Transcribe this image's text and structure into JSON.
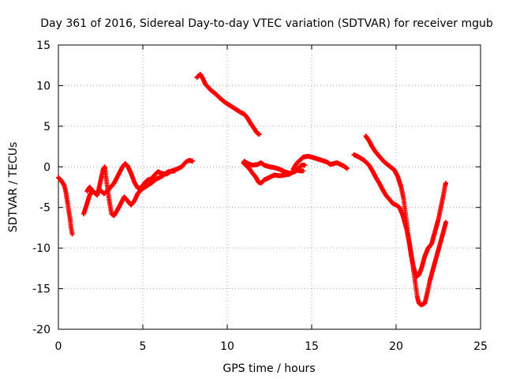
{
  "chart_data": {
    "type": "scatter",
    "title": "Day 361 of 2016, Sidereal Day-to-day VTEC variation (SDTVAR) for receiver mgub",
    "xlabel": "GPS time / hours",
    "ylabel": "SDTVAR / TECUs",
    "xlim": [
      0,
      25
    ],
    "ylim": [
      -20,
      15
    ],
    "x_ticks": [
      0,
      5,
      10,
      15,
      20,
      25
    ],
    "y_ticks": [
      -20,
      -15,
      -10,
      -5,
      0,
      5,
      10,
      15
    ],
    "x_tick_labels": [
      "0",
      "5",
      "10",
      "15",
      "20",
      "25"
    ],
    "y_tick_labels": [
      "-20",
      "-15",
      "-10",
      "-5",
      "0",
      "5",
      "10",
      "15"
    ],
    "grid": true,
    "marker": "+",
    "color": "#ff0000",
    "series": [
      {
        "points": [
          [
            0.0,
            -1.3
          ],
          [
            0.2,
            -1.8
          ],
          [
            0.35,
            -2.3
          ],
          [
            0.45,
            -3.2
          ],
          [
            0.55,
            -4.5
          ],
          [
            0.62,
            -5.5
          ],
          [
            0.7,
            -6.5
          ],
          [
            0.75,
            -7.5
          ],
          [
            0.82,
            -8.3
          ]
        ]
      },
      {
        "points": [
          [
            1.5,
            -5.8
          ],
          [
            1.7,
            -4.5
          ],
          [
            1.85,
            -3.5
          ],
          [
            2.0,
            -3.0
          ],
          [
            2.2,
            -3.3
          ],
          [
            2.5,
            -2.9
          ],
          [
            2.7,
            -3.3
          ],
          [
            2.9,
            -3.0
          ],
          [
            3.1,
            -2.5
          ],
          [
            3.3,
            -2.0
          ],
          [
            3.55,
            -1.0
          ],
          [
            3.8,
            0.0
          ],
          [
            3.95,
            0.4
          ],
          [
            4.1,
            0.1
          ],
          [
            4.3,
            -0.8
          ],
          [
            4.5,
            -1.9
          ],
          [
            4.7,
            -2.6
          ],
          [
            4.9,
            -2.6
          ],
          [
            5.1,
            -2.0
          ],
          [
            5.3,
            -1.6
          ],
          [
            5.5,
            -1.5
          ],
          [
            5.7,
            -1.0
          ],
          [
            5.9,
            -0.6
          ],
          [
            6.1,
            -0.8
          ],
          [
            6.4,
            -0.9
          ],
          [
            6.7,
            -0.5
          ],
          [
            7.0,
            -0.3
          ],
          [
            7.3,
            0.0
          ],
          [
            7.55,
            0.6
          ],
          [
            7.75,
            0.8
          ],
          [
            7.95,
            0.7
          ]
        ]
      },
      {
        "points": [
          [
            1.7,
            -3.0
          ],
          [
            1.85,
            -2.5
          ],
          [
            2.05,
            -3.0
          ],
          [
            2.3,
            -3.5
          ],
          [
            2.45,
            -2.2
          ],
          [
            2.55,
            -1.2
          ],
          [
            2.65,
            -0.3
          ],
          [
            2.75,
            0.0
          ],
          [
            2.8,
            -1.0
          ],
          [
            2.9,
            -2.5
          ],
          [
            3.0,
            -4.0
          ],
          [
            3.15,
            -5.8
          ],
          [
            3.3,
            -6.0
          ],
          [
            3.5,
            -5.3
          ],
          [
            3.7,
            -4.5
          ],
          [
            3.9,
            -3.7
          ],
          [
            4.1,
            -4.2
          ],
          [
            4.3,
            -4.7
          ],
          [
            4.5,
            -4.2
          ],
          [
            4.7,
            -3.3
          ],
          [
            4.9,
            -2.8
          ],
          [
            5.2,
            -2.4
          ],
          [
            5.5,
            -2.0
          ],
          [
            5.8,
            -1.5
          ],
          [
            6.1,
            -1.2
          ],
          [
            6.5,
            -0.6
          ],
          [
            6.9,
            -0.5
          ]
        ]
      },
      {
        "points": [
          [
            8.2,
            11.0
          ],
          [
            8.4,
            11.4
          ],
          [
            8.55,
            10.9
          ],
          [
            8.7,
            10.2
          ],
          [
            9.0,
            9.5
          ],
          [
            9.3,
            9.0
          ],
          [
            9.6,
            8.4
          ],
          [
            9.9,
            7.9
          ],
          [
            10.2,
            7.5
          ],
          [
            10.5,
            7.1
          ],
          [
            10.8,
            6.7
          ],
          [
            11.0,
            6.5
          ],
          [
            11.2,
            6.0
          ],
          [
            11.4,
            5.3
          ],
          [
            11.6,
            4.7
          ],
          [
            11.75,
            4.2
          ],
          [
            11.9,
            4.0
          ]
        ]
      },
      {
        "points": [
          [
            10.95,
            0.5
          ],
          [
            11.1,
            0.2
          ],
          [
            11.3,
            -0.2
          ],
          [
            11.5,
            -0.8
          ],
          [
            11.7,
            -1.3
          ],
          [
            11.85,
            -1.9
          ],
          [
            12.0,
            -2.0
          ],
          [
            12.2,
            -1.6
          ],
          [
            12.5,
            -1.3
          ],
          [
            12.8,
            -1.0
          ],
          [
            13.1,
            -1.1
          ],
          [
            13.4,
            -1.0
          ],
          [
            13.7,
            -0.9
          ],
          [
            13.9,
            -0.6
          ],
          [
            14.1,
            -0.4
          ],
          [
            14.3,
            -0.5
          ],
          [
            14.5,
            -0.5
          ]
        ]
      },
      {
        "points": [
          [
            11.0,
            0.7
          ],
          [
            11.2,
            0.4
          ],
          [
            11.5,
            0.2
          ],
          [
            11.8,
            0.3
          ],
          [
            12.0,
            0.5
          ],
          [
            12.2,
            0.2
          ],
          [
            12.5,
            0.0
          ],
          [
            12.8,
            -0.1
          ],
          [
            13.1,
            -0.3
          ],
          [
            13.4,
            -0.6
          ],
          [
            13.7,
            -0.8
          ],
          [
            14.0,
            -0.6
          ],
          [
            14.2,
            -0.2
          ],
          [
            14.4,
            0.2
          ],
          [
            14.6,
            0.2
          ]
        ]
      },
      {
        "points": [
          [
            13.9,
            -0.3
          ],
          [
            14.1,
            0.4
          ],
          [
            14.3,
            0.8
          ],
          [
            14.5,
            1.2
          ],
          [
            14.8,
            1.3
          ],
          [
            15.0,
            1.2
          ],
          [
            15.3,
            1.0
          ],
          [
            15.6,
            0.8
          ],
          [
            15.9,
            0.6
          ],
          [
            16.1,
            0.3
          ],
          [
            16.3,
            0.4
          ],
          [
            16.5,
            0.5
          ],
          [
            16.7,
            0.3
          ],
          [
            16.9,
            0.1
          ],
          [
            17.1,
            -0.2
          ]
        ]
      },
      {
        "points": [
          [
            17.5,
            1.5
          ],
          [
            17.8,
            1.2
          ],
          [
            18.1,
            0.8
          ],
          [
            18.4,
            0.2
          ],
          [
            18.6,
            -0.5
          ],
          [
            18.8,
            -1.3
          ],
          [
            19.0,
            -2.0
          ],
          [
            19.2,
            -2.8
          ],
          [
            19.4,
            -3.5
          ],
          [
            19.6,
            -4.0
          ],
          [
            19.8,
            -4.5
          ],
          [
            20.0,
            -4.7
          ],
          [
            20.2,
            -5.0
          ],
          [
            20.4,
            -6.0
          ],
          [
            20.6,
            -7.5
          ],
          [
            20.8,
            -9.5
          ],
          [
            20.95,
            -11.5
          ],
          [
            21.05,
            -13.0
          ],
          [
            21.15,
            -14.5
          ],
          [
            21.25,
            -16.0
          ],
          [
            21.35,
            -16.8
          ],
          [
            21.5,
            -17.0
          ],
          [
            21.7,
            -16.8
          ],
          [
            21.85,
            -15.5
          ],
          [
            22.0,
            -14.0
          ],
          [
            22.2,
            -12.5
          ],
          [
            22.4,
            -11.0
          ],
          [
            22.6,
            -9.5
          ],
          [
            22.8,
            -8.0
          ],
          [
            22.95,
            -6.8
          ]
        ]
      },
      {
        "points": [
          [
            18.2,
            3.8
          ],
          [
            18.4,
            3.2
          ],
          [
            18.6,
            2.4
          ],
          [
            18.8,
            1.8
          ],
          [
            19.0,
            1.3
          ],
          [
            19.3,
            0.6
          ],
          [
            19.6,
            0.1
          ],
          [
            19.9,
            -0.4
          ],
          [
            20.1,
            -1.2
          ],
          [
            20.3,
            -2.5
          ],
          [
            20.45,
            -4.0
          ],
          [
            20.6,
            -6.5
          ],
          [
            20.75,
            -9.0
          ],
          [
            20.9,
            -11.0
          ],
          [
            21.05,
            -12.5
          ],
          [
            21.2,
            -13.5
          ],
          [
            21.35,
            -13.3
          ],
          [
            21.5,
            -12.5
          ],
          [
            21.7,
            -11.0
          ],
          [
            21.9,
            -10.0
          ],
          [
            22.1,
            -9.5
          ],
          [
            22.3,
            -8.0
          ],
          [
            22.5,
            -6.5
          ],
          [
            22.65,
            -5.0
          ],
          [
            22.8,
            -3.5
          ],
          [
            22.9,
            -2.3
          ],
          [
            22.95,
            -2.0
          ]
        ]
      }
    ]
  }
}
